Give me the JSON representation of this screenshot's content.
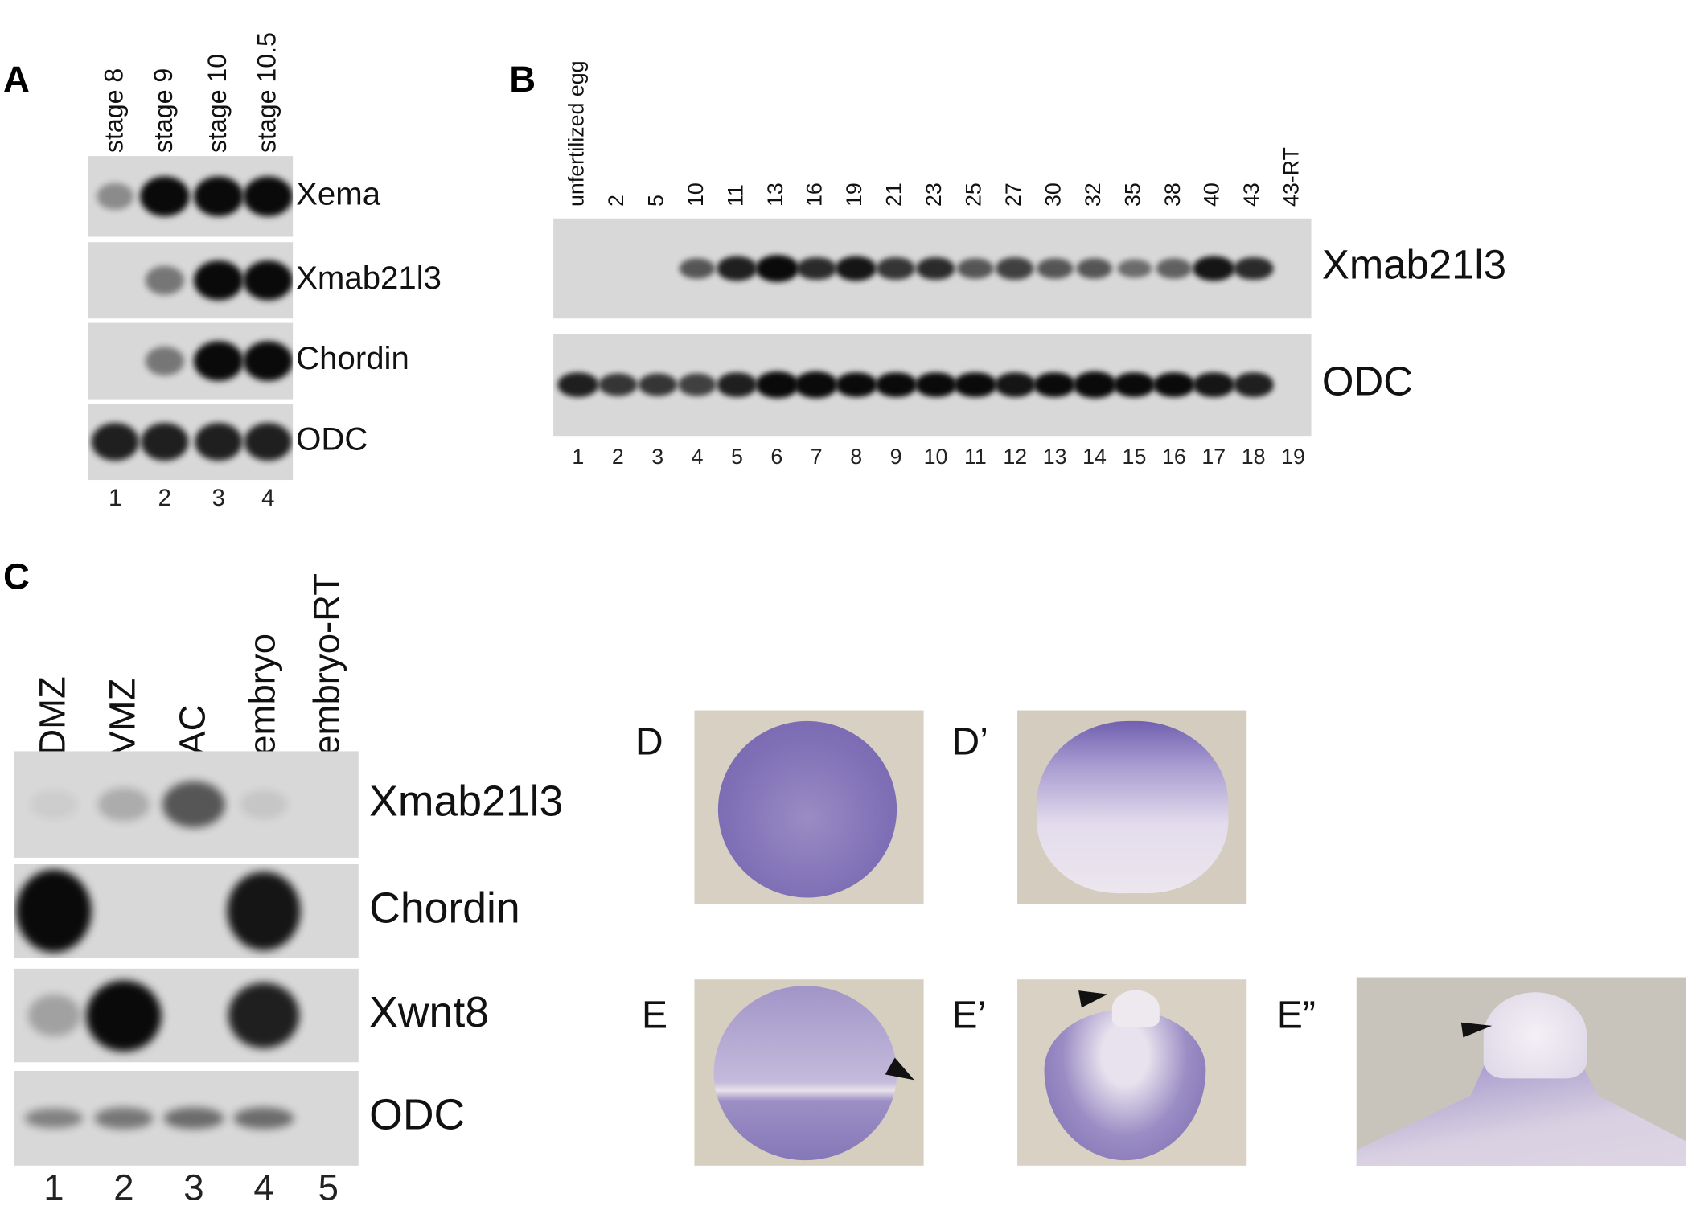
{
  "panels": {
    "A": {
      "label": "A",
      "lanes": [
        "stage 8",
        "stage 9",
        "stage 10",
        "stage 10.5"
      ],
      "lane_numbers": [
        "1",
        "2",
        "3",
        "4"
      ],
      "blots": [
        {
          "gene": "Xema",
          "intensity": [
            0.35,
            1,
            1,
            1
          ]
        },
        {
          "gene": "Xmab21l3",
          "intensity": [
            0,
            0.45,
            1,
            1
          ]
        },
        {
          "gene": "Chordin",
          "intensity": [
            0,
            0.45,
            1,
            1
          ]
        },
        {
          "gene": "ODC",
          "intensity": [
            0.85,
            0.85,
            0.85,
            0.85
          ]
        }
      ]
    },
    "B": {
      "label": "B",
      "lanes": [
        "unfertilized egg",
        "2",
        "5",
        "10",
        "11",
        "13",
        "16",
        "19",
        "21",
        "23",
        "25",
        "27",
        "30",
        "32",
        "35",
        "38",
        "40",
        "43",
        "43-RT"
      ],
      "lane_numbers": [
        "1",
        "2",
        "3",
        "4",
        "5",
        "6",
        "7",
        "8",
        "9",
        "10",
        "11",
        "12",
        "13",
        "14",
        "15",
        "16",
        "17",
        "18",
        "19"
      ],
      "blots": [
        {
          "gene": "Xmab21l3",
          "intensity": [
            0,
            0,
            0,
            0.6,
            0.85,
            1,
            0.8,
            0.9,
            0.75,
            0.8,
            0.6,
            0.7,
            0.6,
            0.6,
            0.5,
            0.55,
            0.9,
            0.8,
            0
          ]
        },
        {
          "gene": "ODC",
          "intensity": [
            0.85,
            0.75,
            0.75,
            0.7,
            0.85,
            1,
            1,
            0.95,
            0.95,
            0.95,
            0.95,
            0.9,
            0.95,
            1,
            0.95,
            0.95,
            0.9,
            0.85,
            0
          ]
        }
      ]
    },
    "C": {
      "label": "C",
      "lanes": [
        "DMZ",
        "VMZ",
        "AC",
        "embryo",
        "embryo-RT"
      ],
      "lane_numbers": [
        "1",
        "2",
        "3",
        "4",
        "5"
      ],
      "blots": [
        {
          "gene": "Xmab21l3",
          "intensity": [
            0.05,
            0.2,
            0.6,
            0.08,
            0
          ]
        },
        {
          "gene": "Chordin",
          "intensity": [
            1,
            0,
            0,
            0.9,
            0
          ]
        },
        {
          "gene": "Xwnt8",
          "intensity": [
            0.25,
            1,
            0,
            0.85,
            0
          ]
        },
        {
          "gene": "ODC",
          "intensity": [
            0.4,
            0.45,
            0.5,
            0.5,
            0
          ]
        }
      ]
    },
    "photos": [
      {
        "label": "D"
      },
      {
        "label": "D’"
      },
      {
        "label": "E"
      },
      {
        "label": "E’"
      },
      {
        "label": "E”"
      }
    ]
  },
  "colors": {
    "stain": "#6f5aa8",
    "background_tan": "#d9d2c4",
    "film": "#d8d8d8"
  }
}
